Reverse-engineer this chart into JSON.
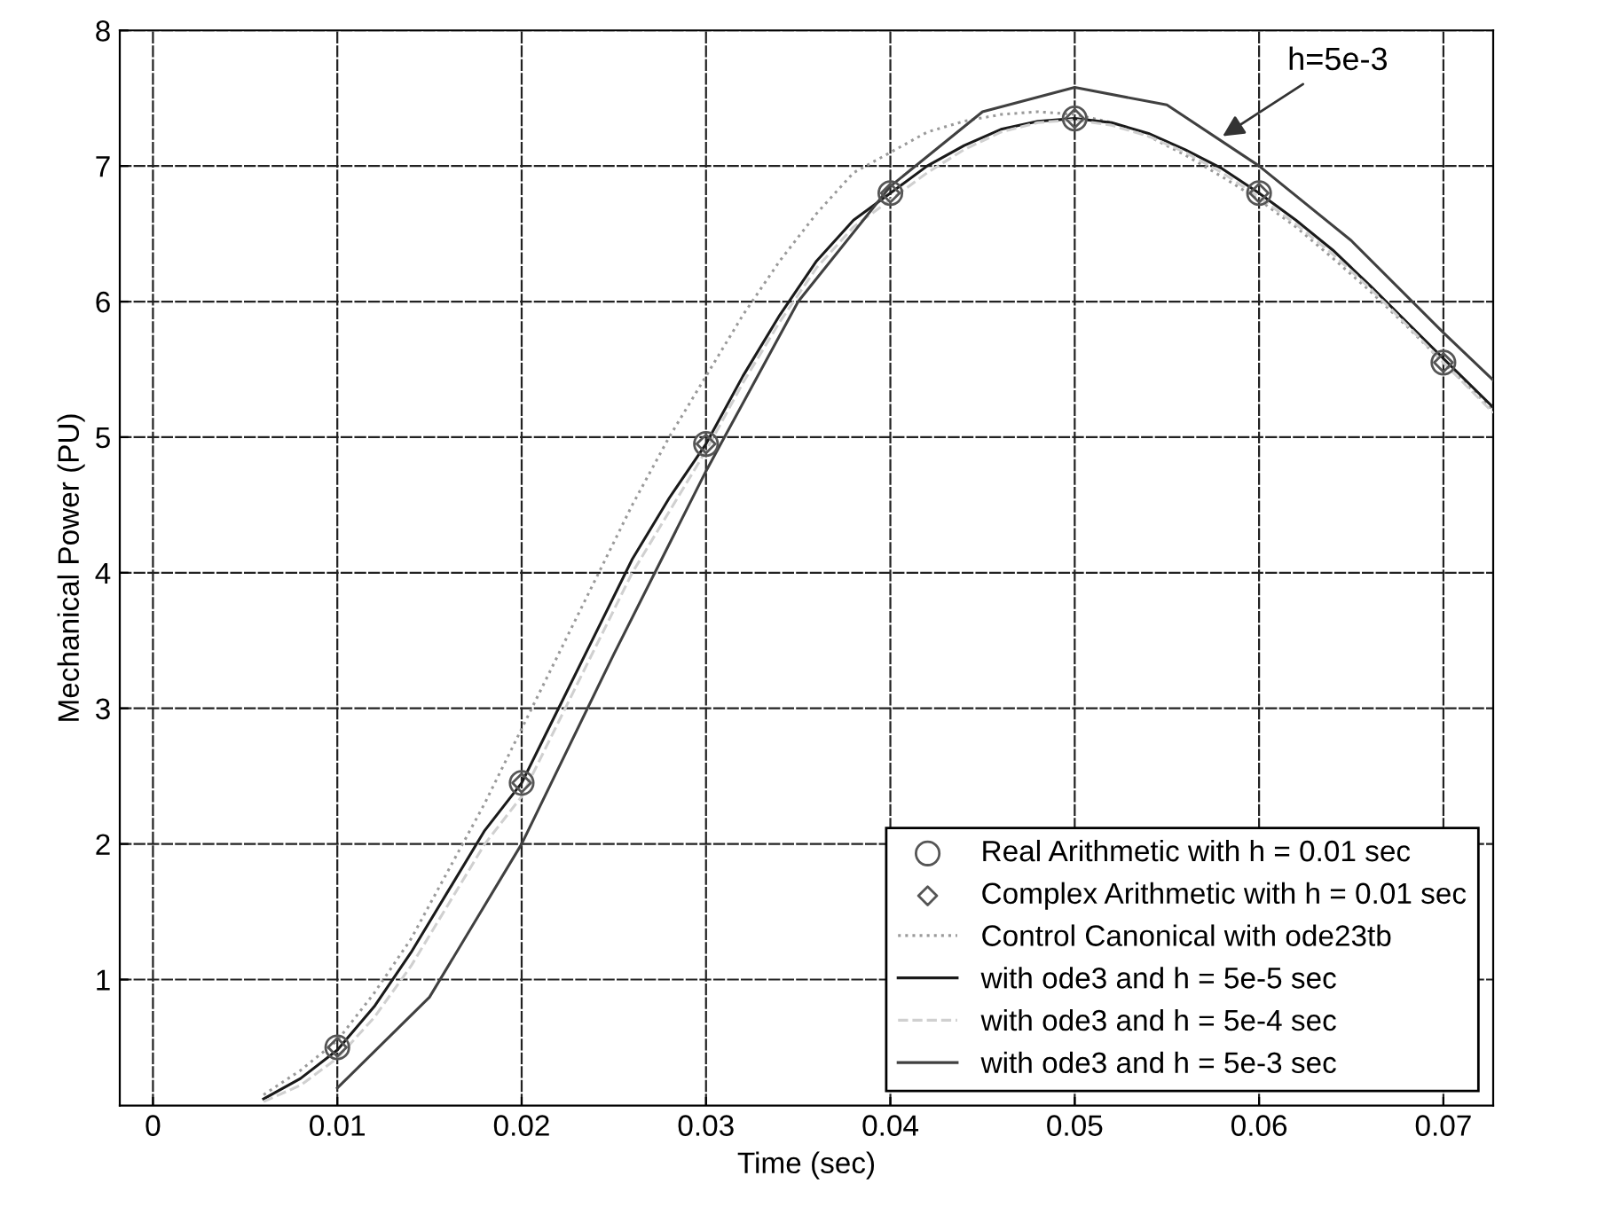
{
  "chart_data": {
    "type": "line",
    "xlabel": "Time (sec)",
    "ylabel": "Mechanical Power (PU)",
    "xlim": [
      -0.0018,
      0.0727
    ],
    "ylim": [
      0.07,
      8
    ],
    "xticks": [
      0,
      0.01,
      0.02,
      0.03,
      0.04,
      0.05,
      0.06,
      0.07
    ],
    "yticks": [
      1,
      2,
      3,
      4,
      5,
      6,
      7,
      8
    ],
    "grid": true,
    "legend": "bottom right",
    "annotations": [
      {
        "text": "h=5e-3",
        "x": 0.0578,
        "y": 7.2
      }
    ],
    "series": [
      {
        "name": "Real Arithmetic with h = 0.01 sec",
        "type": "scatter",
        "marker": "circle",
        "color": "#555555",
        "x": [
          0.01,
          0.02,
          0.03,
          0.04,
          0.05,
          0.06,
          0.07
        ],
        "values": [
          0.5,
          2.45,
          4.95,
          6.8,
          7.35,
          6.8,
          5.55
        ]
      },
      {
        "name": "Complex Arithmetic with h = 0.01 sec",
        "type": "scatter",
        "marker": "diamond",
        "color": "#555555",
        "x": [
          0.01,
          0.02,
          0.03,
          0.04,
          0.05,
          0.06,
          0.07
        ],
        "values": [
          0.5,
          2.45,
          4.95,
          6.8,
          7.35,
          6.8,
          5.55
        ]
      },
      {
        "name": "Control Canonical with ode23tb",
        "line_style": "dotted",
        "color": "#9a9a9a",
        "x": [
          0.006,
          0.008,
          0.01,
          0.012,
          0.014,
          0.016,
          0.018,
          0.02,
          0.022,
          0.024,
          0.026,
          0.028,
          0.03,
          0.032,
          0.034,
          0.036,
          0.038,
          0.04,
          0.042,
          0.044,
          0.046,
          0.048,
          0.05,
          0.052,
          0.054,
          0.056,
          0.058,
          0.06,
          0.062,
          0.064,
          0.066,
          0.068,
          0.07,
          0.0727
        ],
        "values": [
          0.15,
          0.33,
          0.55,
          0.9,
          1.3,
          1.8,
          2.3,
          2.85,
          3.4,
          3.95,
          4.5,
          5.0,
          5.45,
          5.9,
          6.3,
          6.65,
          6.95,
          7.1,
          7.25,
          7.33,
          7.38,
          7.4,
          7.38,
          7.32,
          7.22,
          7.08,
          6.92,
          6.75,
          6.55,
          6.32,
          6.08,
          5.82,
          5.55,
          5.2
        ]
      },
      {
        "name": "with ode3 and h = 5e-5 sec",
        "line_style": "solid",
        "color": "#1a1a1a",
        "x": [
          0.006,
          0.008,
          0.01,
          0.012,
          0.014,
          0.016,
          0.018,
          0.02,
          0.022,
          0.024,
          0.026,
          0.028,
          0.03,
          0.032,
          0.034,
          0.036,
          0.038,
          0.04,
          0.042,
          0.044,
          0.046,
          0.048,
          0.05,
          0.052,
          0.054,
          0.056,
          0.058,
          0.06,
          0.062,
          0.064,
          0.066,
          0.068,
          0.07,
          0.0727
        ],
        "values": [
          0.12,
          0.27,
          0.48,
          0.8,
          1.2,
          1.65,
          2.1,
          2.45,
          3.0,
          3.55,
          4.1,
          4.55,
          4.95,
          5.45,
          5.9,
          6.3,
          6.6,
          6.8,
          7.0,
          7.15,
          7.27,
          7.33,
          7.35,
          7.32,
          7.24,
          7.12,
          6.98,
          6.8,
          6.6,
          6.38,
          6.12,
          5.85,
          5.58,
          5.22
        ]
      },
      {
        "name": "with ode3 and h = 5e-4 sec",
        "line_style": "dashed",
        "color": "#d0d0d0",
        "x": [
          0.006,
          0.008,
          0.01,
          0.012,
          0.014,
          0.016,
          0.018,
          0.02,
          0.022,
          0.024,
          0.026,
          0.028,
          0.03,
          0.032,
          0.034,
          0.036,
          0.038,
          0.04,
          0.042,
          0.044,
          0.046,
          0.048,
          0.05,
          0.052,
          0.054,
          0.056,
          0.058,
          0.06,
          0.062,
          0.064,
          0.066,
          0.068,
          0.07,
          0.0727
        ],
        "values": [
          0.1,
          0.22,
          0.42,
          0.72,
          1.1,
          1.55,
          2.0,
          2.35,
          2.9,
          3.45,
          4.0,
          4.45,
          4.9,
          5.4,
          5.85,
          6.25,
          6.55,
          6.75,
          6.95,
          7.12,
          7.25,
          7.32,
          7.34,
          7.3,
          7.22,
          7.1,
          6.95,
          6.77,
          6.57,
          6.35,
          6.1,
          5.83,
          5.55,
          5.18
        ]
      },
      {
        "name": "with ode3 and h = 5e-3 sec",
        "line_style": "solid",
        "color": "#404040",
        "x": [
          0.01,
          0.015,
          0.02,
          0.025,
          0.03,
          0.035,
          0.04,
          0.045,
          0.05,
          0.055,
          0.06,
          0.065,
          0.07,
          0.0727
        ],
        "values": [
          0.2,
          0.87,
          2.0,
          3.4,
          4.75,
          6.0,
          6.85,
          7.4,
          7.58,
          7.45,
          7.0,
          6.45,
          5.77,
          5.42
        ]
      }
    ]
  }
}
